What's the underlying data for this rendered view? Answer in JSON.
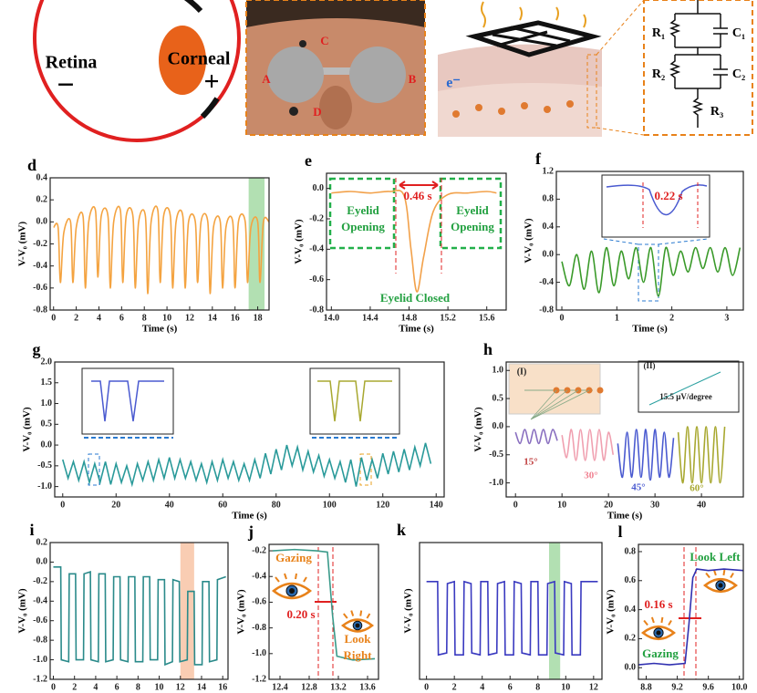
{
  "eye_diagram": {
    "retina": "Retina",
    "corneal": "Corneal",
    "minus": "−",
    "plus": "+"
  },
  "face_photo": {
    "points": [
      "A",
      "B",
      "C",
      "D"
    ]
  },
  "circuit": {
    "electron": "e⁻",
    "components": [
      "R₁",
      "C₁",
      "R₂",
      "C₂",
      "R₃"
    ]
  },
  "chart_data": [
    {
      "type": "line",
      "panel": "d",
      "xlabel": "Time (s)",
      "ylabel": "V-V₀ (mV)",
      "x": [
        0,
        0.4,
        0.6,
        0.9,
        1.5,
        1.7,
        2.0,
        2.6,
        2.8,
        3.1,
        3.7,
        3.9,
        4.2,
        4.8,
        5.0,
        5.3,
        5.9,
        6.1,
        6.4,
        7.0,
        7.2,
        7.5,
        8.1,
        8.3,
        8.6,
        9.2,
        9.4,
        9.7,
        10.3,
        10.5,
        10.8,
        11.4,
        11.6,
        11.9,
        12.5,
        12.7,
        13.0,
        13.6,
        13.8,
        14.1,
        14.7,
        14.9,
        15.2,
        15.8,
        16.0,
        16.3,
        16.9,
        17.1,
        17.4,
        18.0,
        18.2,
        18.5,
        19.0
      ],
      "series": [
        {
          "color": "#f4a340",
          "values": [
            -0.05,
            -0.05,
            -0.55,
            -0.1,
            0.0,
            -0.55,
            -0.05,
            0.05,
            -0.6,
            0.0,
            0.1,
            -0.5,
            0.05,
            0.05,
            -0.6,
            0.0,
            0.1,
            -0.55,
            0.05,
            0.05,
            -0.6,
            0.0,
            0.05,
            -0.65,
            0.0,
            0.1,
            -0.55,
            0.05,
            0.05,
            -0.6,
            0.0,
            0.05,
            -0.6,
            0.0,
            0.0,
            -0.55,
            0.0,
            0.0,
            -0.65,
            -0.05,
            0.0,
            -0.6,
            -0.05,
            0.0,
            -0.6,
            0.0,
            0.0,
            -0.55,
            -0.05,
            0.0,
            -0.55,
            0.0,
            0.0
          ]
        }
      ],
      "xlim": [
        -0.3,
        19.0
      ],
      "ylim": [
        -0.8,
        0.4
      ],
      "xticks": [
        0,
        2,
        4,
        6,
        8,
        10,
        12,
        14,
        16,
        18
      ],
      "yticks": [
        -0.8,
        -0.6,
        -0.4,
        -0.2,
        {
          "value": 0,
          "label": "0.0"
        },
        0.2,
        0.4
      ],
      "highlights": [
        {
          "range": [
            17.2,
            18.6
          ],
          "color": "#9fd89f"
        }
      ],
      "annotations": []
    },
    {
      "type": "line",
      "panel": "e",
      "xlabel": "Time (s)",
      "ylabel": "V-V₀ (mV)",
      "x": [
        14.0,
        14.2,
        14.4,
        14.6,
        14.75,
        14.82,
        14.88,
        14.95,
        15.05,
        15.2,
        15.4,
        15.6,
        15.7
      ],
      "series": [
        {
          "color": "#f2a14a",
          "values": [
            -0.03,
            -0.02,
            -0.03,
            -0.02,
            -0.05,
            -0.4,
            -0.68,
            -0.45,
            -0.15,
            -0.04,
            -0.03,
            -0.02,
            -0.03
          ]
        }
      ],
      "xlim": [
        13.95,
        15.8
      ],
      "ylim": [
        -0.8,
        0.1
      ],
      "xticks": [
        {
          "value": 14,
          "label": "14.0"
        },
        14.4,
        14.8,
        15.2,
        15.6
      ],
      "yticks": [
        -0.8,
        -0.6,
        -0.4,
        -0.2,
        {
          "value": 0,
          "label": "0.0"
        }
      ],
      "highlights": [],
      "annotations": [
        "Eyelid",
        "Opening",
        "0.46 s",
        "Eyelid",
        "Opening",
        "Eyelid Closed"
      ]
    },
    {
      "type": "line",
      "panel": "f",
      "xlabel": "Time (s)",
      "ylabel": "V-V₀ (mV)",
      "x": [
        0,
        0.135,
        0.27,
        0.405,
        0.54,
        0.675,
        0.81,
        0.945,
        1.08,
        1.215,
        1.35,
        1.485,
        1.62,
        1.755,
        1.89,
        2.025,
        2.16,
        2.295,
        2.43,
        2.565,
        2.7,
        2.835,
        2.97,
        3.105,
        3.24
      ],
      "series": [
        {
          "color": "#3a9a2a",
          "values": [
            -0.1,
            -0.45,
            0.0,
            -0.5,
            0.05,
            -0.55,
            0.1,
            -0.45,
            0.05,
            -0.35,
            0.1,
            -0.4,
            0.1,
            -0.6,
            0.1,
            -0.3,
            0.05,
            -0.25,
            0.1,
            -0.2,
            0.1,
            -0.25,
            0.1,
            -0.3,
            0.1
          ]
        }
      ],
      "xlim": [
        -0.1,
        3.3
      ],
      "ylim": [
        -0.8,
        1.2
      ],
      "xticks": [
        0,
        1,
        2,
        3
      ],
      "yticks": [
        -0.8,
        -0.4,
        {
          "value": 0,
          "label": "0.0"
        },
        0.4,
        0.8,
        1.2
      ],
      "highlights": [],
      "annotations": [
        "0.22 s"
      ]
    },
    {
      "type": "line",
      "panel": "g",
      "xlabel": "Time (s)",
      "ylabel": "V-V₀ (mV)",
      "x": [
        0,
        2,
        4,
        6,
        8,
        10,
        12,
        14,
        16,
        18,
        20,
        22,
        24,
        26,
        28,
        30,
        32,
        34,
        36,
        38,
        40,
        42,
        44,
        46,
        48,
        50,
        52,
        54,
        56,
        58,
        60,
        62,
        64,
        66,
        68,
        70,
        72,
        74,
        76,
        78,
        80,
        82,
        84,
        86,
        88,
        90,
        92,
        94,
        96,
        98,
        100,
        102,
        104,
        106,
        108,
        110,
        112,
        114,
        116,
        118,
        120,
        122,
        124,
        126,
        128,
        130,
        132,
        134,
        136,
        138
      ],
      "series": [
        {
          "color": "#2a9a9a",
          "values": [
            -0.35,
            -0.8,
            -0.4,
            -0.85,
            -0.4,
            -0.9,
            -0.45,
            -0.9,
            -0.4,
            -0.95,
            -0.45,
            -0.9,
            -0.5,
            -0.95,
            -0.45,
            -0.85,
            -0.4,
            -0.85,
            -0.35,
            -0.8,
            -0.3,
            -0.8,
            -0.35,
            -0.8,
            -0.4,
            -0.85,
            -0.45,
            -0.9,
            -0.4,
            -0.85,
            -0.35,
            -0.8,
            -0.4,
            -0.85,
            -0.45,
            -0.85,
            -0.35,
            -0.8,
            -0.2,
            -0.7,
            -0.1,
            -0.6,
            0.0,
            -0.5,
            -0.05,
            -0.6,
            -0.15,
            -0.65,
            -0.25,
            -0.75,
            -0.35,
            -0.8,
            -0.4,
            -0.9,
            -0.35,
            -1.0,
            -0.3,
            -0.85,
            -0.35,
            -0.8,
            -0.2,
            -0.7,
            -0.15,
            -0.65,
            -0.1,
            -0.6,
            -0.05,
            -0.5,
            0.05,
            -0.45
          ]
        }
      ],
      "xlim": [
        -3,
        143
      ],
      "ylim": [
        -1.25,
        2.0
      ],
      "xticks": [
        0,
        20,
        40,
        60,
        80,
        100,
        120,
        140
      ],
      "yticks": [
        {
          "value": -1,
          "label": "-1.0"
        },
        -0.5,
        {
          "value": 0,
          "label": "0.0"
        },
        0.5,
        {
          "value": 1,
          "label": "1.0"
        },
        1.5,
        {
          "value": 2,
          "label": "2.0"
        }
      ],
      "highlights": [],
      "annotations": []
    },
    {
      "type": "line",
      "panel": "h",
      "xlabel": "Time (s)",
      "ylabel": "V-V₀ (mV)",
      "series": [
        {
          "color": "#8a70c0",
          "x": [
            0,
            1,
            2,
            3,
            4,
            5,
            6,
            7,
            8,
            9
          ],
          "values": [
            -0.1,
            -0.3,
            -0.05,
            -0.3,
            -0.05,
            -0.3,
            -0.05,
            -0.3,
            -0.05,
            -0.25
          ]
        },
        {
          "color": "#f0a0b0",
          "x": [
            10,
            11,
            12,
            13,
            14,
            15,
            16,
            17,
            18,
            19,
            20,
            21
          ],
          "values": [
            -0.15,
            -0.55,
            -0.05,
            -0.6,
            -0.05,
            -0.6,
            -0.05,
            -0.6,
            -0.05,
            -0.6,
            -0.1,
            -0.5
          ]
        },
        {
          "color": "#4a5ad0",
          "x": [
            22,
            23,
            24,
            25,
            26,
            27,
            28,
            29,
            30,
            31,
            32,
            33,
            34
          ],
          "values": [
            -0.3,
            -0.9,
            -0.1,
            -0.9,
            -0.05,
            -0.9,
            -0.05,
            -0.95,
            -0.05,
            -0.9,
            -0.1,
            -0.9,
            -0.2
          ]
        },
        {
          "color": "#a8a830",
          "x": [
            35,
            36,
            37,
            38,
            39,
            40,
            41,
            42,
            43,
            44,
            45
          ],
          "values": [
            -0.1,
            -1.0,
            0.0,
            -1.0,
            0.0,
            -1.0,
            0.0,
            -1.0,
            0.0,
            -1.0,
            0.0
          ]
        }
      ],
      "xlim": [
        -2,
        49
      ],
      "ylim": [
        -1.25,
        1.15
      ],
      "xticks": [
        0,
        10,
        20,
        30,
        40
      ],
      "yticks": [
        {
          "value": -1,
          "label": "-1.0"
        },
        -0.5,
        {
          "value": 0,
          "label": "0.0"
        },
        0.5,
        {
          "value": 1,
          "label": "1.0"
        }
      ],
      "highlights": [],
      "annotations": [
        "(I)",
        "(II)",
        "15.5 μV/degree",
        "15°",
        "30°",
        "45°",
        "60°"
      ]
    },
    {
      "type": "line",
      "panel": "i",
      "ylabel": "V-V₀ (mV)",
      "x": [
        0,
        0.7,
        0.75,
        1.45,
        1.5,
        2.1,
        2.15,
        2.85,
        2.9,
        3.5,
        3.55,
        4.25,
        4.3,
        4.9,
        4.95,
        5.65,
        5.7,
        6.3,
        6.35,
        7.05,
        7.1,
        7.7,
        7.75,
        8.45,
        8.5,
        9.1,
        9.15,
        9.85,
        9.9,
        10.5,
        10.55,
        11.25,
        11.3,
        11.9,
        11.95,
        12.65,
        12.7,
        13.3,
        13.35,
        14.05,
        14.1,
        14.7,
        14.75,
        15.45,
        15.5,
        16.3
      ],
      "series": [
        {
          "color": "#2a8a8a",
          "values": [
            -0.05,
            -0.05,
            -1.0,
            -1.02,
            -0.12,
            -0.12,
            -1.0,
            -1.0,
            -0.12,
            -0.1,
            -1.0,
            -1.02,
            -0.12,
            -0.12,
            -1.02,
            -1.0,
            -0.15,
            -0.15,
            -1.0,
            -1.02,
            -0.15,
            -0.15,
            -1.02,
            -1.02,
            -0.15,
            -0.15,
            -1.0,
            -1.0,
            -0.18,
            -0.18,
            -1.05,
            -1.02,
            -0.18,
            -0.2,
            -1.02,
            -1.0,
            -0.3,
            -0.3,
            -1.05,
            -1.05,
            -0.2,
            -0.2,
            -1.02,
            -1.0,
            -0.18,
            -0.15
          ]
        }
      ],
      "xlim": [
        -0.3,
        16.5
      ],
      "ylim": [
        -1.2,
        0.2
      ],
      "xticks": [
        0,
        2,
        4,
        6,
        8,
        10,
        12,
        14,
        16
      ],
      "yticks": [
        -1.2,
        {
          "value": -1,
          "label": "-1.0"
        },
        -0.8,
        -0.6,
        -0.4,
        -0.2,
        {
          "value": 0,
          "label": "0.0"
        },
        0.2
      ],
      "highlights": [
        {
          "range": [
            12.0,
            13.3
          ],
          "color": "#f8c0a0"
        }
      ],
      "annotations": []
    },
    {
      "type": "line",
      "panel": "j",
      "ylabel": "V-V₀ (mV)",
      "x": [
        12.3,
        12.6,
        12.9,
        13.05,
        13.12,
        13.18,
        13.4,
        13.7
      ],
      "series": [
        {
          "color": "#3a9a8a",
          "values": [
            -0.2,
            -0.19,
            -0.2,
            -0.21,
            -0.7,
            -1.02,
            -1.05,
            -1.04
          ]
        }
      ],
      "xlim": [
        12.25,
        13.75
      ],
      "ylim": [
        -1.2,
        -0.15
      ],
      "xticks": [
        12.4,
        12.8,
        13.2,
        13.6
      ],
      "yticks": [
        -1.2,
        {
          "value": -1,
          "label": "-1.0"
        },
        -0.8,
        -0.6,
        -0.4,
        -0.2
      ],
      "highlights": [],
      "annotations": [
        "Gazing",
        "0.20 s",
        "Look",
        "Right"
      ]
    },
    {
      "type": "line",
      "panel": "k",
      "ylabel": "V-V₀ (mV)",
      "x": [
        0,
        0.8,
        0.85,
        1.45,
        1.5,
        2.0,
        2.05,
        2.65,
        2.7,
        3.2,
        3.25,
        3.85,
        3.9,
        4.4,
        4.45,
        5.05,
        5.1,
        5.6,
        5.65,
        6.25,
        6.3,
        6.8,
        6.85,
        7.45,
        7.5,
        8.0,
        8.05,
        8.65,
        8.7,
        9.2,
        9.25,
        9.85,
        9.9,
        10.4,
        10.45,
        11.05,
        11.1,
        12.3
      ],
      "series": [
        {
          "color": "#3a3ac0",
          "values": [
            -0.2,
            -0.2,
            -0.95,
            -0.93,
            -0.22,
            -0.2,
            -0.95,
            -0.95,
            -0.2,
            -0.22,
            -0.93,
            -0.95,
            -0.2,
            -0.2,
            -0.95,
            -0.93,
            -0.22,
            -0.2,
            -0.95,
            -0.95,
            -0.2,
            -0.22,
            -0.93,
            -0.95,
            -0.2,
            -0.2,
            -0.95,
            -0.95,
            -0.22,
            -0.2,
            -0.93,
            -0.95,
            -0.2,
            -0.22,
            -0.95,
            -0.95,
            -0.2,
            -0.2
          ]
        }
      ],
      "xlim": [
        -0.5,
        12.6
      ],
      "ylim": [
        -1.2,
        0.2
      ],
      "xticks": [
        0,
        2,
        4,
        6,
        8,
        10,
        12
      ],
      "yticks": [],
      "highlights": [
        {
          "range": [
            8.8,
            9.6
          ],
          "color": "#9fd89f"
        }
      ],
      "annotations": []
    },
    {
      "type": "line",
      "panel": "l",
      "ylabel": "V-V₀ (mV)",
      "x": [
        8.7,
        8.9,
        9.1,
        9.3,
        9.35,
        9.4,
        9.45,
        9.6,
        9.8,
        10.05
      ],
      "series": [
        {
          "color": "#3030b0",
          "values": [
            0.02,
            0.03,
            0.02,
            0.03,
            0.3,
            0.62,
            0.68,
            0.67,
            0.68,
            0.67
          ]
        }
      ],
      "xlim": [
        8.7,
        10.05
      ],
      "ylim": [
        -0.08,
        0.85
      ],
      "xticks": [
        8.8,
        9.2,
        9.6,
        {
          "value": 10,
          "label": "10.0"
        }
      ],
      "yticks": [
        {
          "value": 0,
          "label": "0.0"
        },
        0.2,
        0.4,
        0.6,
        0.8
      ],
      "highlights": [],
      "annotations": [
        "Look Left",
        "0.16 s",
        "Gazing"
      ]
    }
  ]
}
